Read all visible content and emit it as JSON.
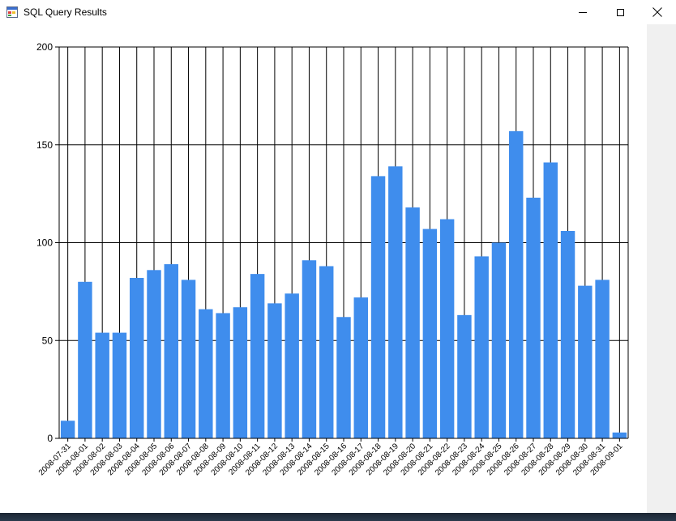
{
  "window": {
    "title": "SQL Query Results"
  },
  "colors": {
    "bar": "#3f8ded",
    "grid": "#000000"
  },
  "chart_data": {
    "type": "bar",
    "title": "",
    "xlabel": "",
    "ylabel": "",
    "ylim": [
      0,
      200
    ],
    "yticks": [
      0,
      50,
      100,
      150,
      200
    ],
    "grid": true,
    "legend": "none",
    "categories": [
      "2008-07-31",
      "2008-08-01",
      "2008-08-02",
      "2008-08-03",
      "2008-08-04",
      "2008-08-05",
      "2008-08-06",
      "2008-08-07",
      "2008-08-08",
      "2008-08-09",
      "2008-08-10",
      "2008-08-11",
      "2008-08-12",
      "2008-08-13",
      "2008-08-14",
      "2008-08-15",
      "2008-08-16",
      "2008-08-17",
      "2008-08-18",
      "2008-08-19",
      "2008-08-20",
      "2008-08-21",
      "2008-08-22",
      "2008-08-23",
      "2008-08-24",
      "2008-08-25",
      "2008-08-26",
      "2008-08-27",
      "2008-08-28",
      "2008-08-29",
      "2008-08-30",
      "2008-08-31",
      "2008-09-01"
    ],
    "values": [
      9,
      80,
      54,
      54,
      82,
      86,
      89,
      81,
      66,
      64,
      67,
      84,
      69,
      74,
      91,
      88,
      62,
      72,
      134,
      139,
      118,
      107,
      112,
      63,
      93,
      100,
      157,
      123,
      141,
      106,
      78,
      81,
      3
    ]
  }
}
